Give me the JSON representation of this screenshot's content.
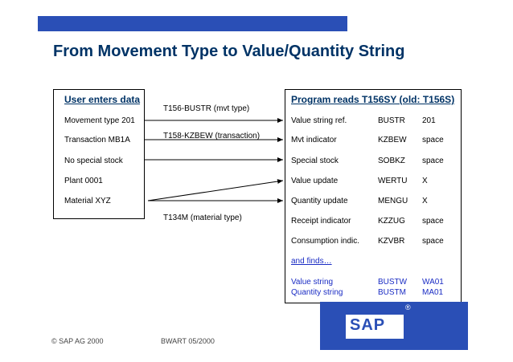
{
  "title": "From Movement Type to Value/Quantity String",
  "left": {
    "header": "User enters data",
    "items": [
      "Movement type 201",
      "Transaction MB1A",
      "No special stock",
      "Plant 0001",
      "Material XYZ"
    ]
  },
  "middle": {
    "t156": "T156-BUSTR (mvt type)",
    "t158": "T158-KZBEW (transaction)",
    "t134": "T134M (material type)"
  },
  "right": {
    "header": "Program reads T156SY (old: T156S)",
    "rows": [
      {
        "label": "Value string ref.",
        "field": "BUSTR",
        "value": "201"
      },
      {
        "label": "Mvt indicator",
        "field": "KZBEW",
        "value": "space"
      },
      {
        "label": "Special stock",
        "field": "SOBKZ",
        "value": "space"
      },
      {
        "label": "Value update",
        "field": "WERTU",
        "value": "X"
      },
      {
        "label": "Quantity update",
        "field": "MENGU",
        "value": "X"
      },
      {
        "label": "Receipt indicator",
        "field": "KZZUG",
        "value": "space"
      },
      {
        "label": "Consumption indic.",
        "field": "KZVBR",
        "value": "space"
      }
    ],
    "finds": "and finds…",
    "results": [
      {
        "label": "Value string",
        "field": "BUSTW",
        "value": "WA01"
      },
      {
        "label": "Quantity string",
        "field": "BUSTM",
        "value": "MA01"
      }
    ]
  },
  "footer": {
    "copyright": "©  SAP AG 2000",
    "code": "BWART  05/2000"
  },
  "logo": {
    "text": "SAP",
    "reg": "®"
  },
  "colors": {
    "title": "#003366",
    "accent": "#2a4fb6",
    "finds": "#1a2cc4"
  }
}
